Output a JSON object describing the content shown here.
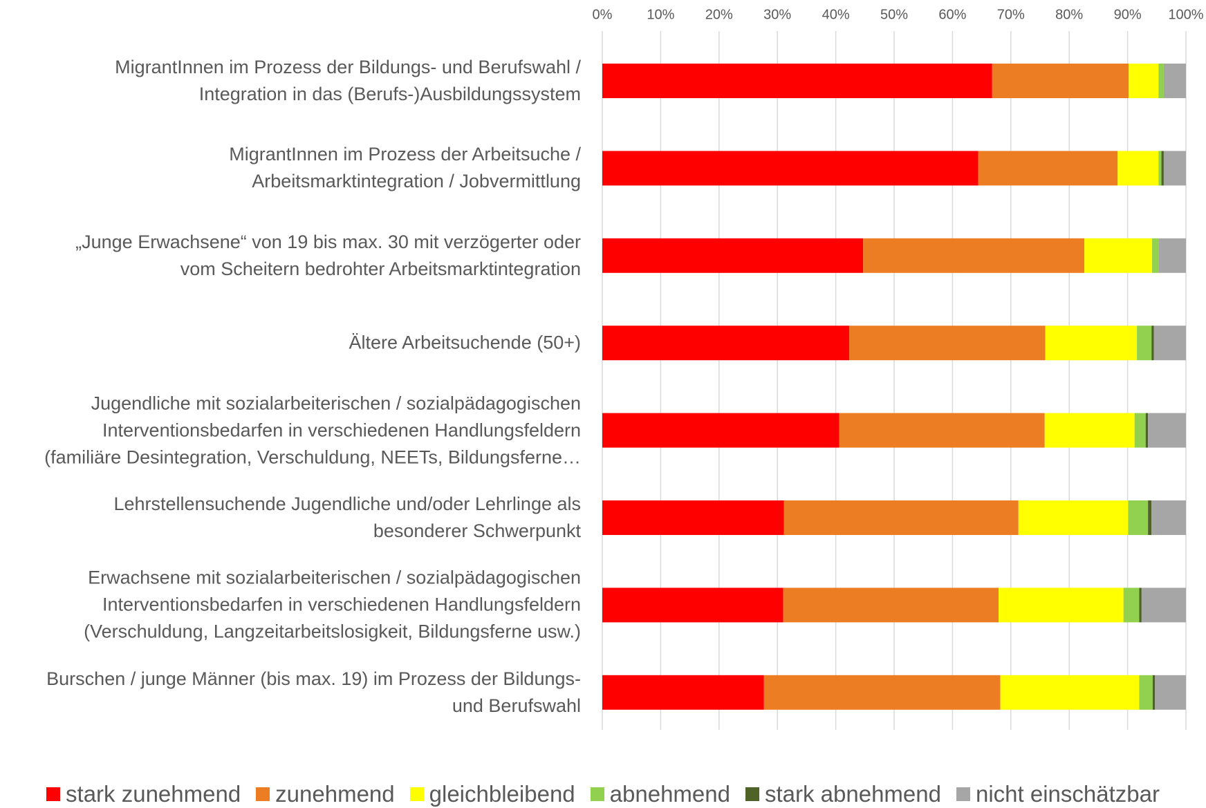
{
  "chart_data": {
    "type": "stacked_bar_horizontal",
    "categories": [
      "MigrantInnen im Prozess der Bildungs- und Berufswahl /\nIntegration in das (Berufs-)Ausbildungssystem",
      "MigrantInnen im Prozess der Arbeitsuche /\nArbeitsmarktintegration / Jobvermittlung",
      "„Junge Erwachsene“ von 19 bis max. 30 mit verzögerter oder\nvom Scheitern bedrohter Arbeitsmarktintegration",
      "Ältere Arbeitsuchende (50+)",
      "Jugendliche mit sozialarbeiterischen / sozialpädagogischen\nInterventionsbedarfen in verschiedenen Handlungsfeldern\n(familiäre Desintegration, Verschuldung, NEETs, Bildungsferne…",
      "Lehrstellensuchende Jugendliche und/oder Lehrlinge als\nbesonderer Schwerpunkt",
      "Erwachsene mit sozialarbeiterischen / sozialpädagogischen\nInterventionsbedarfen in verschiedenen Handlungsfeldern\n(Verschuldung, Langzeitarbeitslosigkeit, Bildungsferne usw.)",
      "Burschen / junge Männer (bis max. 19) im Prozess der Bildungs-\nund Berufswahl"
    ],
    "series": [
      {
        "name": "stark zunehmend",
        "color": "#ff0000",
        "values": [
          66.8,
          64.4,
          44.7,
          42.3,
          40.6,
          31.1,
          31.0,
          27.7
        ]
      },
      {
        "name": "zunehmend",
        "color": "#ed7d22",
        "values": [
          23.4,
          23.9,
          37.9,
          33.6,
          35.2,
          40.2,
          36.9,
          40.5
        ]
      },
      {
        "name": "gleichbleibend",
        "color": "#ffff00",
        "values": [
          5.1,
          7.0,
          11.6,
          15.7,
          15.4,
          18.8,
          21.4,
          23.8
        ]
      },
      {
        "name": "abnehmend",
        "color": "#92d050",
        "values": [
          0.9,
          0.5,
          1.1,
          2.5,
          1.9,
          3.4,
          2.7,
          2.3
        ]
      },
      {
        "name": "stark abnehmend",
        "color": "#4f6228",
        "values": [
          0,
          0.4,
          0,
          0.4,
          0.4,
          0.6,
          0.4,
          0.4
        ]
      },
      {
        "name": "nicht einschätzbar",
        "color": "#a6a6a6",
        "values": [
          3.8,
          3.8,
          4.7,
          5.5,
          6.5,
          5.9,
          7.6,
          5.3
        ]
      }
    ],
    "xlim": [
      0,
      100
    ],
    "xticks": [
      {
        "value": 0,
        "label": "0%"
      },
      {
        "value": 10,
        "label": "10%"
      },
      {
        "value": 20,
        "label": "20%"
      },
      {
        "value": 30,
        "label": "30%"
      },
      {
        "value": 40,
        "label": "40%"
      },
      {
        "value": 50,
        "label": "50%"
      },
      {
        "value": 60,
        "label": "60%"
      },
      {
        "value": 70,
        "label": "70%"
      },
      {
        "value": 80,
        "label": "80%"
      },
      {
        "value": 90,
        "label": "90%"
      },
      {
        "value": 100,
        "label": "100%"
      }
    ],
    "grid": true,
    "legend": "bottom"
  }
}
